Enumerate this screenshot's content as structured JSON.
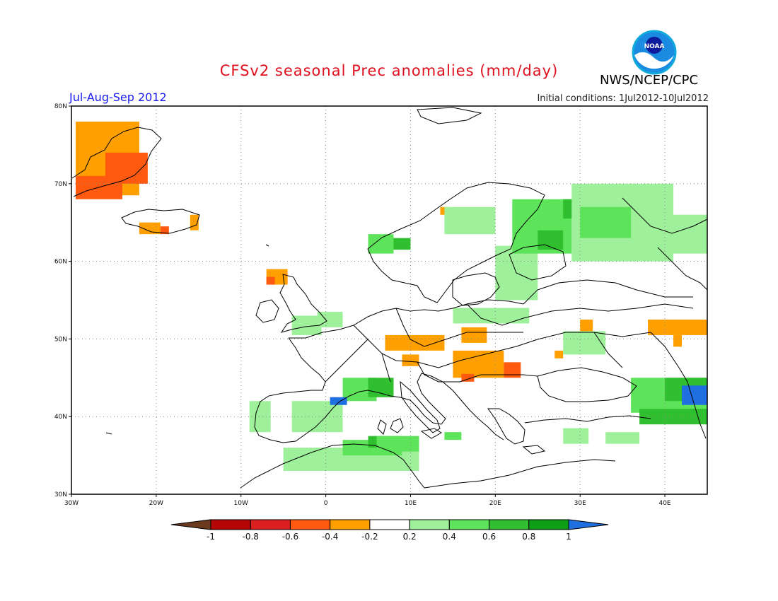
{
  "title": "CFSv2 seasonal Prec anomalies (mm/day)",
  "period": "Jul-Aug-Sep 2012",
  "initial_conditions": "Initial conditions: 1Jul2012-10Jul2012",
  "org": "NWS/NCEP/CPC",
  "logo_text": "NOAA",
  "map": {
    "lon_range": [
      -30,
      45
    ],
    "lat_range": [
      30,
      80
    ],
    "lon_ticks": [
      {
        "v": -30,
        "label": "30W"
      },
      {
        "v": -20,
        "label": "20W"
      },
      {
        "v": -10,
        "label": "10W"
      },
      {
        "v": 0,
        "label": "0"
      },
      {
        "v": 10,
        "label": "10E"
      },
      {
        "v": 20,
        "label": "20E"
      },
      {
        "v": 30,
        "label": "30E"
      },
      {
        "v": 40,
        "label": "40E"
      }
    ],
    "lat_ticks": [
      {
        "v": 30,
        "label": "30N"
      },
      {
        "v": 40,
        "label": "40N"
      },
      {
        "v": 50,
        "label": "50N"
      },
      {
        "v": 60,
        "label": "60N"
      },
      {
        "v": 70,
        "label": "70N"
      },
      {
        "v": 80,
        "label": "80N"
      }
    ],
    "grid": true
  },
  "colorbar": {
    "labels": [
      "-1",
      "-0.8",
      "-0.6",
      "-0.4",
      "-0.2",
      "0.2",
      "0.4",
      "0.6",
      "0.8",
      "1"
    ],
    "colors": [
      "#6b3a1e",
      "#b50606",
      "#dc1f1f",
      "#ff5a10",
      "#ffa000",
      "#ffffff",
      "#9ff09a",
      "#5ee45a",
      "#2fbf2f",
      "#0d9e17",
      "#1f6fe0"
    ]
  },
  "anomaly_patches": [
    {
      "lon": [
        -29.5,
        -22
      ],
      "lat": [
        68.5,
        78
      ],
      "level": "-0.4"
    },
    {
      "lon": [
        -29.5,
        -24
      ],
      "lat": [
        68,
        71
      ],
      "level": "-0.6"
    },
    {
      "lon": [
        -26,
        -21
      ],
      "lat": [
        70,
        74
      ],
      "level": "-0.6"
    },
    {
      "lon": [
        -22,
        -19.5
      ],
      "lat": [
        63.5,
        65
      ],
      "level": "-0.4"
    },
    {
      "lon": [
        -19.5,
        -18.5
      ],
      "lat": [
        63.5,
        64.5
      ],
      "level": "-0.6"
    },
    {
      "lon": [
        -16,
        -15
      ],
      "lat": [
        64,
        66
      ],
      "level": "-0.4"
    },
    {
      "lon": [
        -7,
        -4.5
      ],
      "lat": [
        57,
        59
      ],
      "level": "-0.4"
    },
    {
      "lon": [
        -7,
        -6
      ],
      "lat": [
        57,
        58
      ],
      "level": "-0.6"
    },
    {
      "lon": [
        13.5,
        14.5
      ],
      "lat": [
        66,
        67
      ],
      "level": "-0.4"
    },
    {
      "lon": [
        7,
        14
      ],
      "lat": [
        48.5,
        50.5
      ],
      "level": "-0.4"
    },
    {
      "lon": [
        9,
        11
      ],
      "lat": [
        46.5,
        48
      ],
      "level": "-0.4"
    },
    {
      "lon": [
        15,
        21
      ],
      "lat": [
        45,
        48.5
      ],
      "level": "-0.4"
    },
    {
      "lon": [
        16,
        19
      ],
      "lat": [
        49.5,
        51.5
      ],
      "level": "-0.4"
    },
    {
      "lon": [
        21,
        23
      ],
      "lat": [
        45,
        47
      ],
      "level": "-0.6"
    },
    {
      "lon": [
        16,
        17.5
      ],
      "lat": [
        44.5,
        45.5
      ],
      "level": "-0.6"
    },
    {
      "lon": [
        27,
        28
      ],
      "lat": [
        47.5,
        48.5
      ],
      "level": "-0.4"
    },
    {
      "lon": [
        30,
        31.5
      ],
      "lat": [
        51,
        52.5
      ],
      "level": "-0.4"
    },
    {
      "lon": [
        38,
        45
      ],
      "lat": [
        50.5,
        52.5
      ],
      "level": "-0.4"
    },
    {
      "lon": [
        41,
        42
      ],
      "lat": [
        49,
        50.5
      ],
      "level": "-0.4"
    },
    {
      "lon": [
        -4,
        -0.5
      ],
      "lat": [
        50.5,
        53
      ],
      "level": "0.2"
    },
    {
      "lon": [
        -1,
        2
      ],
      "lat": [
        51.5,
        53.5
      ],
      "level": "0.2"
    },
    {
      "lon": [
        -9,
        -6.5
      ],
      "lat": [
        38,
        42
      ],
      "level": "0.2"
    },
    {
      "lon": [
        -4,
        2
      ],
      "lat": [
        38,
        42
      ],
      "level": "0.2"
    },
    {
      "lon": [
        2,
        6
      ],
      "lat": [
        42,
        45
      ],
      "level": "0.4"
    },
    {
      "lon": [
        5,
        8
      ],
      "lat": [
        42.5,
        45
      ],
      "level": "0.6"
    },
    {
      "lon": [
        0.5,
        2.5
      ],
      "lat": [
        41.5,
        42.5
      ],
      "level": "1"
    },
    {
      "lon": [
        -5,
        11
      ],
      "lat": [
        33,
        36
      ],
      "level": "0.2"
    },
    {
      "lon": [
        2,
        9
      ],
      "lat": [
        35,
        37
      ],
      "level": "0.4"
    },
    {
      "lon": [
        5,
        9
      ],
      "lat": [
        36,
        37.5
      ],
      "level": "0.6"
    },
    {
      "lon": [
        6,
        11
      ],
      "lat": [
        35.5,
        37.5
      ],
      "level": "0.4"
    },
    {
      "lon": [
        14,
        16
      ],
      "lat": [
        37,
        38
      ],
      "level": "0.4"
    },
    {
      "lon": [
        5,
        8
      ],
      "lat": [
        61,
        63.5
      ],
      "level": "0.4"
    },
    {
      "lon": [
        8,
        10
      ],
      "lat": [
        61.5,
        63
      ],
      "level": "0.6"
    },
    {
      "lon": [
        14,
        20
      ],
      "lat": [
        63.5,
        67
      ],
      "level": "0.2"
    },
    {
      "lon": [
        20,
        25
      ],
      "lat": [
        55,
        62
      ],
      "level": "0.2"
    },
    {
      "lon": [
        22,
        29
      ],
      "lat": [
        61,
        68
      ],
      "level": "0.4"
    },
    {
      "lon": [
        25,
        28
      ],
      "lat": [
        61.5,
        64
      ],
      "level": "0.6"
    },
    {
      "lon": [
        28,
        30
      ],
      "lat": [
        65.5,
        68
      ],
      "level": "0.6"
    },
    {
      "lon": [
        29,
        41
      ],
      "lat": [
        60,
        70
      ],
      "level": "0.2"
    },
    {
      "lon": [
        30,
        36
      ],
      "lat": [
        63,
        67
      ],
      "level": "0.4"
    },
    {
      "lon": [
        40,
        45
      ],
      "lat": [
        61,
        66
      ],
      "level": "0.2"
    },
    {
      "lon": [
        15,
        24
      ],
      "lat": [
        52,
        54
      ],
      "level": "0.2"
    },
    {
      "lon": [
        28,
        33
      ],
      "lat": [
        48,
        51
      ],
      "level": "0.2"
    },
    {
      "lon": [
        36,
        45
      ],
      "lat": [
        40.5,
        45
      ],
      "level": "0.4"
    },
    {
      "lon": [
        37,
        45
      ],
      "lat": [
        39,
        41
      ],
      "level": "0.6"
    },
    {
      "lon": [
        40,
        45
      ],
      "lat": [
        42,
        45
      ],
      "level": "0.6"
    },
    {
      "lon": [
        42,
        45
      ],
      "lat": [
        41.5,
        44
      ],
      "level": "1"
    },
    {
      "lon": [
        28,
        31
      ],
      "lat": [
        36.5,
        38.5
      ],
      "level": "0.2"
    },
    {
      "lon": [
        33,
        37
      ],
      "lat": [
        36.5,
        38
      ],
      "level": "0.2"
    }
  ]
}
